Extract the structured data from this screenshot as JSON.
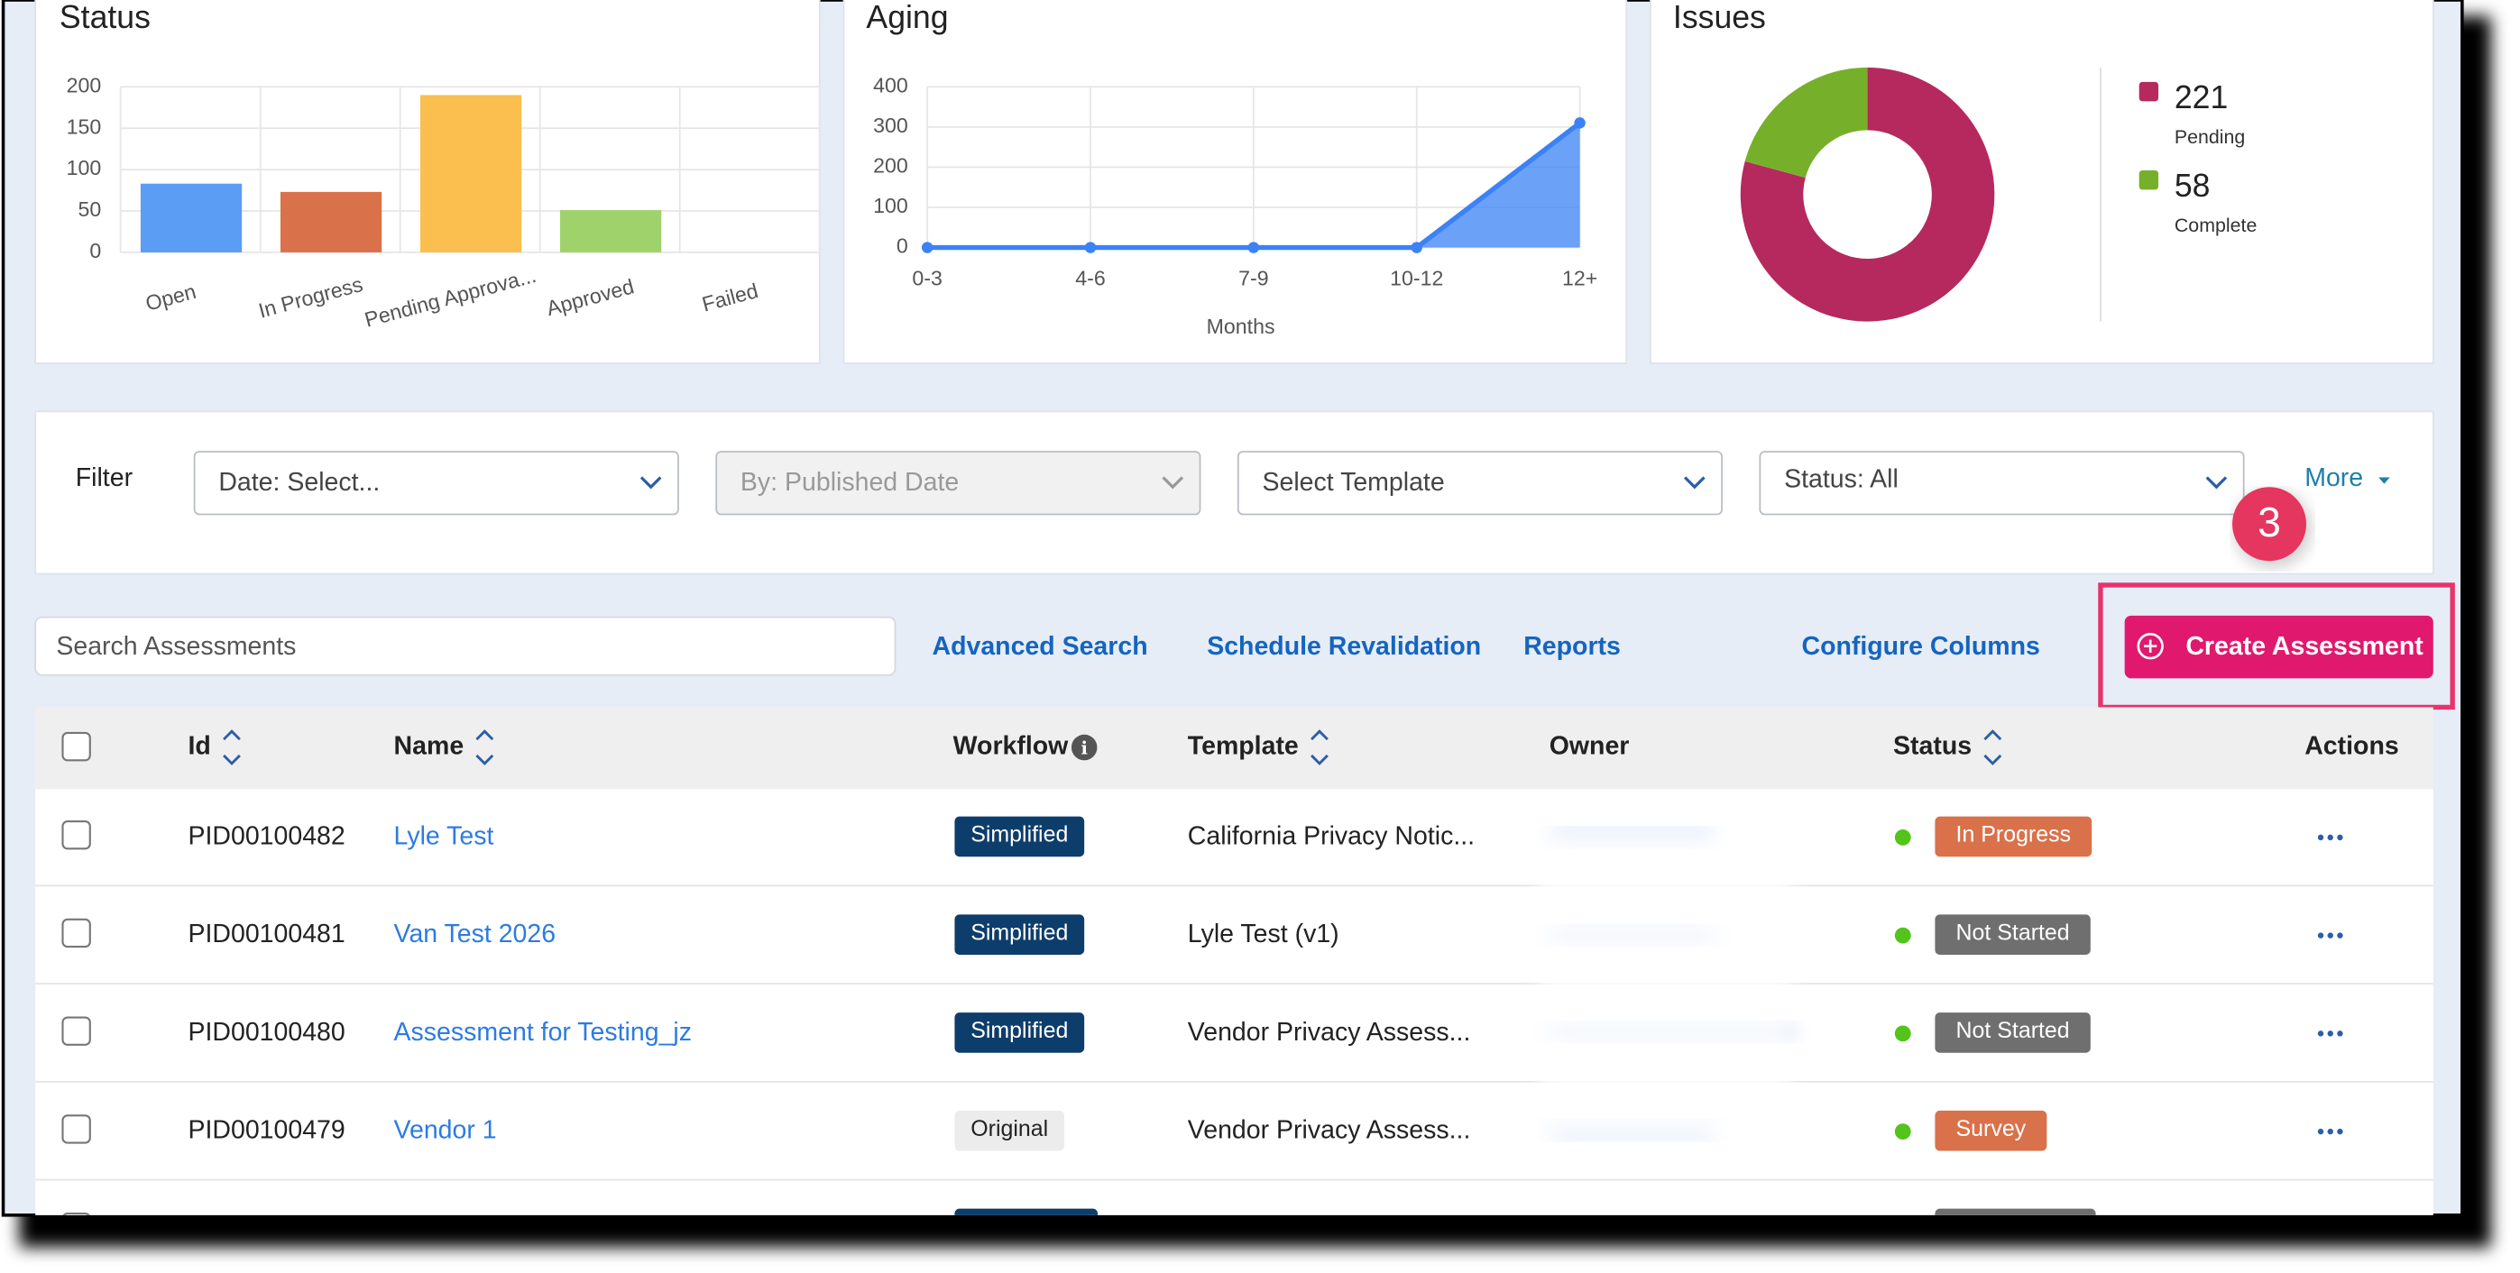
{
  "chart_data": [
    {
      "type": "bar",
      "title": "Status",
      "categories": [
        "Open",
        "In Progress",
        "Pending Approva...",
        "Approved",
        "Failed"
      ],
      "values": [
        83,
        73,
        190,
        51,
        0
      ],
      "colors": [
        "#5b9cf5",
        "#d9714a",
        "#fbbf4f",
        "#9fd26a",
        "#9e9e9e"
      ],
      "ylim": [
        0,
        200
      ],
      "yticks": [
        0,
        50,
        100,
        150,
        200
      ],
      "grid": true
    },
    {
      "type": "line",
      "title": "Aging",
      "categories": [
        "0-3",
        "4-6",
        "7-9",
        "10-12",
        "12+"
      ],
      "values": [
        0,
        0,
        0,
        0,
        310
      ],
      "color": "#3b82f6",
      "ylim": [
        0,
        400
      ],
      "yticks": [
        0,
        100,
        200,
        300,
        400
      ],
      "x_label": "Months",
      "grid": true
    },
    {
      "type": "pie",
      "title": "Issues",
      "categories": [
        "Pending",
        "Complete"
      ],
      "values": [
        221,
        58
      ],
      "colors": [
        "#b5295f",
        "#76b02a"
      ],
      "donut": true
    }
  ],
  "filter": {
    "label": "Filter",
    "selects": [
      {
        "text": "Date: Select...",
        "disabled": false
      },
      {
        "text": "By: Published Date",
        "disabled": true
      },
      {
        "text": "Select Template",
        "disabled": false
      },
      {
        "text": "Status: All",
        "disabled": false
      }
    ],
    "more": "More"
  },
  "callout": "3",
  "toolbar": {
    "search_placeholder": "Search Assessments",
    "links": [
      "Advanced Search",
      "Schedule Revalidation",
      "Reports",
      "Configure Columns"
    ],
    "button": "Create Assessment"
  },
  "table": {
    "columns": [
      "Id",
      "Name",
      "Workflow",
      "Template",
      "Owner",
      "Status",
      "Actions"
    ],
    "sortable": [
      true,
      true,
      false,
      true,
      false,
      true,
      false
    ],
    "rows": [
      {
        "id": "PID00100482",
        "name": "Lyle Test",
        "workflow": "Simplified",
        "workflow_color": "#0d3d6b",
        "template": "California Privacy Notic...",
        "status": "In Progress",
        "status_color": "#d9714a"
      },
      {
        "id": "PID00100481",
        "name": "Van Test 2026",
        "workflow": "Simplified",
        "workflow_color": "#0d3d6b",
        "template": "Lyle Test (v1)",
        "status": "Not Started",
        "status_color": "#6f6f6f"
      },
      {
        "id": "PID00100480",
        "name": "Assessment for Testing_jz",
        "workflow": "Simplified",
        "workflow_color": "#0d3d6b",
        "template": "Vendor Privacy Assess...",
        "status": "Not Started",
        "status_color": "#6f6f6f"
      },
      {
        "id": "PID00100479",
        "name": "Vendor 1",
        "workflow": "Original",
        "workflow_color": "#ececec",
        "template": "Vendor Privacy Assess...",
        "status": "Survey",
        "status_color": "#d9714a"
      }
    ]
  }
}
